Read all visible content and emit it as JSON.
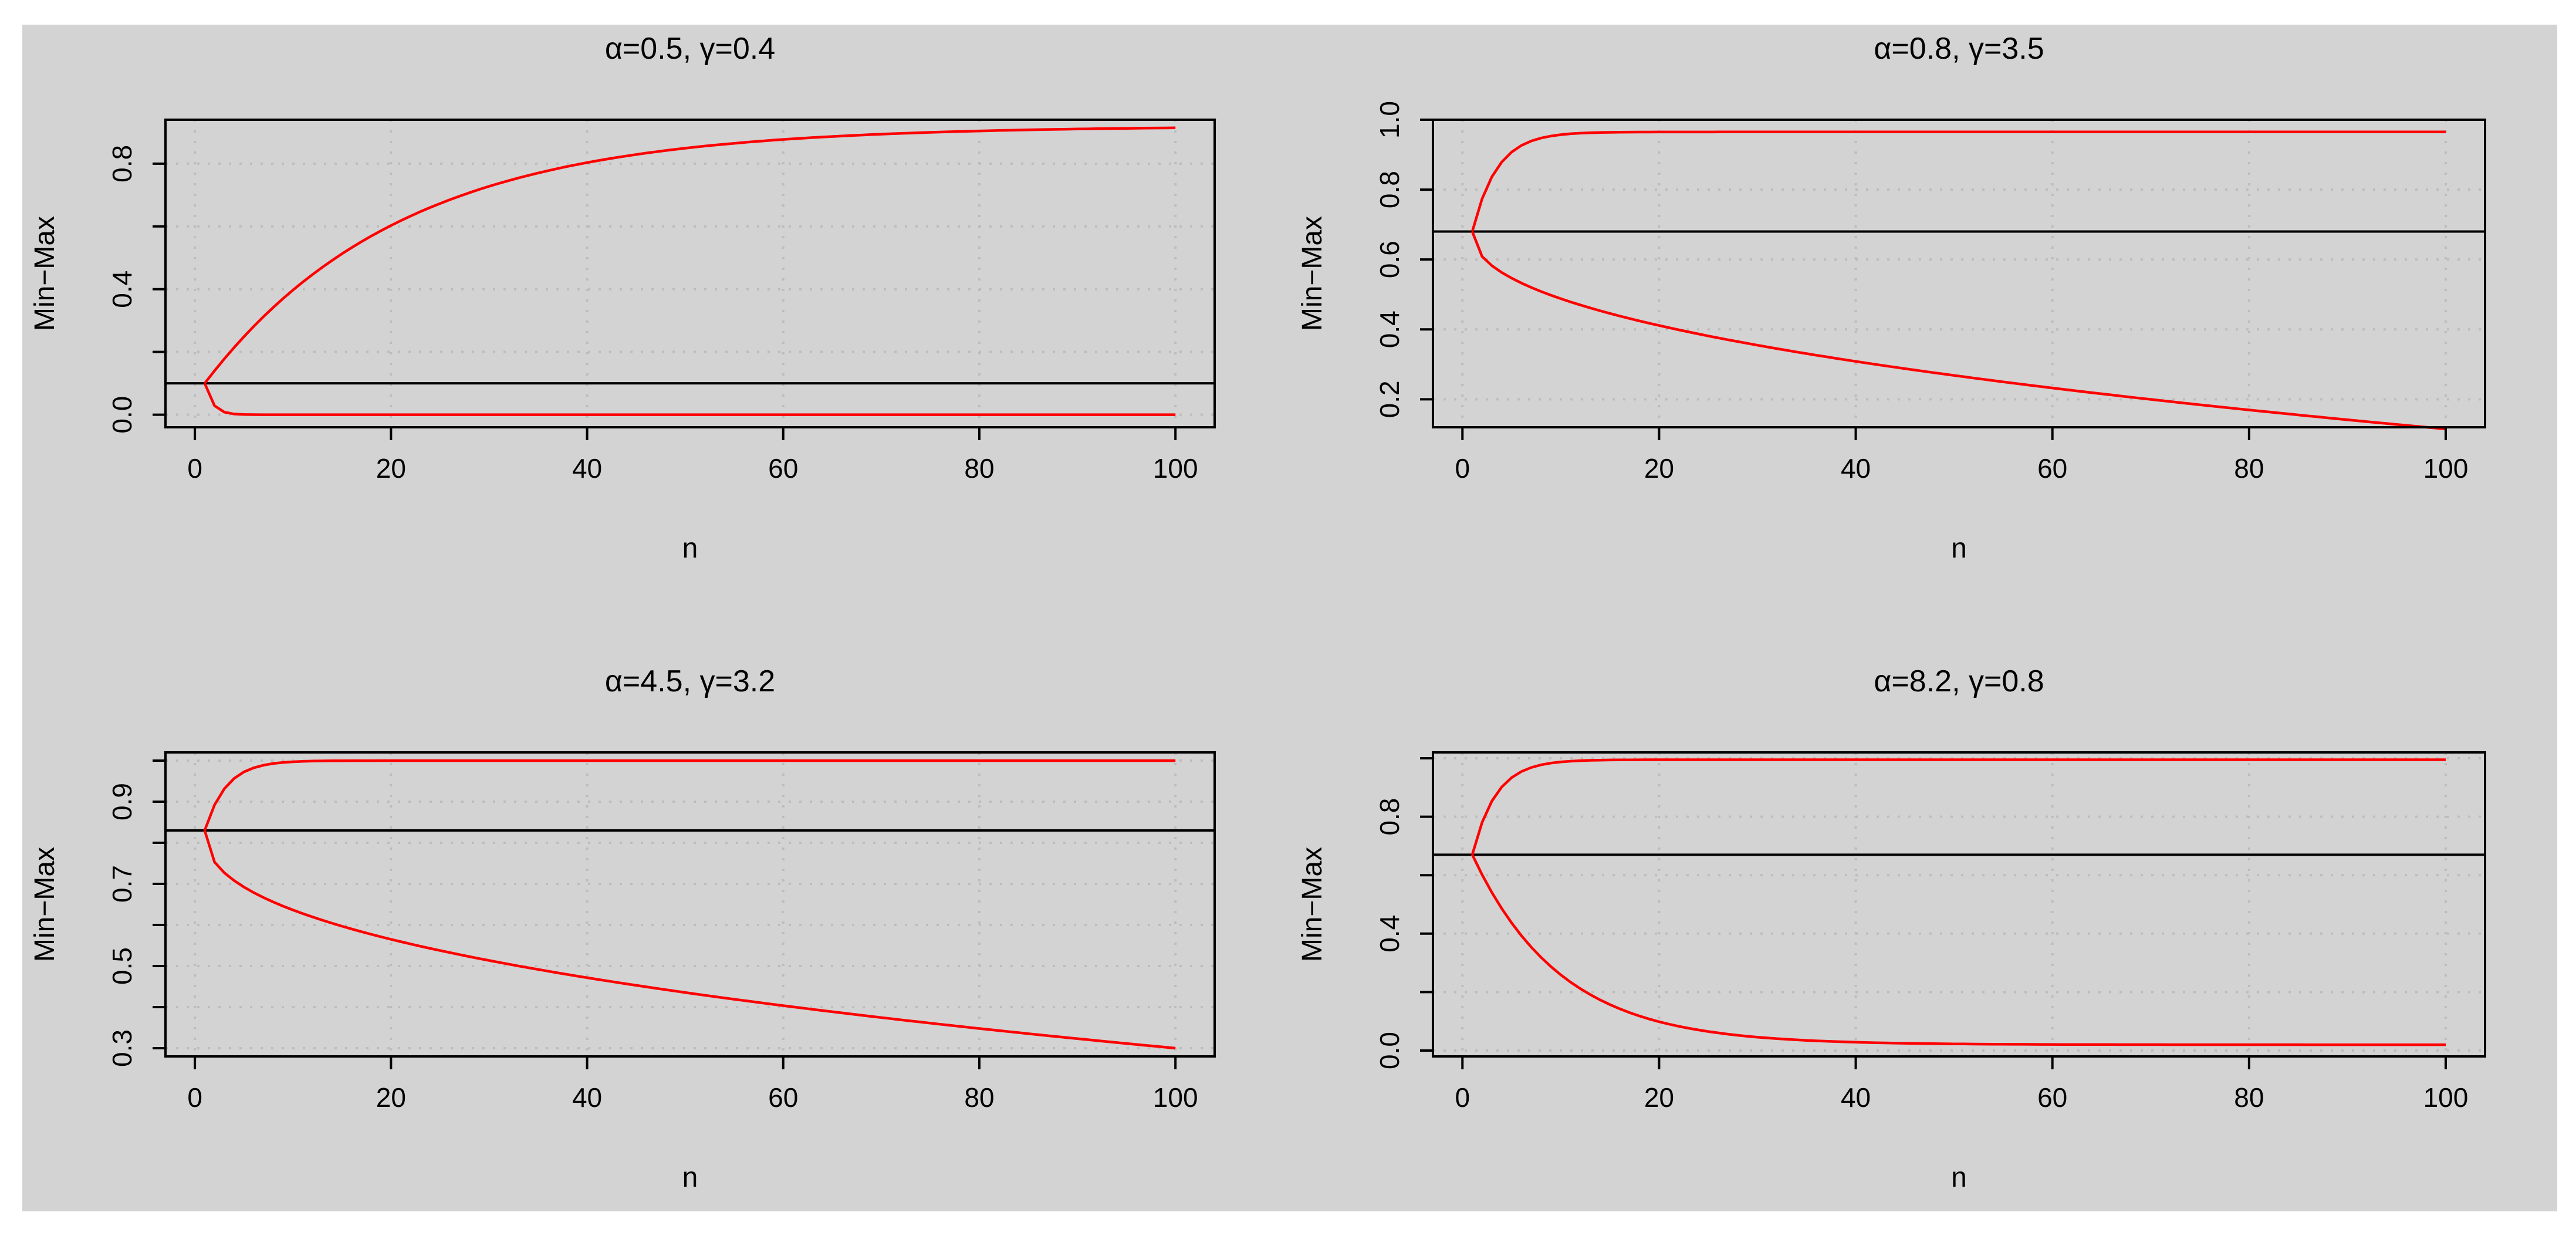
{
  "colors": {
    "page_bg": "#ffffff",
    "figure_bg": "#d3d3d3",
    "axis": "#000000",
    "grid": "#bdbdbd",
    "curve": "#ff0000"
  },
  "chart_data": [
    {
      "type": "line",
      "title": "α=0.5, γ=0.4",
      "xlabel": "n",
      "ylabel": "Min−Max",
      "xlim": [
        -3,
        104
      ],
      "ylim": [
        -0.04,
        0.94
      ],
      "xticks": [
        0,
        20,
        40,
        60,
        80,
        100
      ],
      "xtick_labels": [
        "0",
        "20",
        "40",
        "60",
        "80",
        "100"
      ],
      "yticks": [
        0.0,
        0.2,
        0.4,
        0.6,
        0.8
      ],
      "ytick_labels": [
        "0.0",
        "",
        "0.4",
        "",
        "0.8"
      ],
      "hline": 0.1,
      "upper_dash_y": null,
      "upper": {
        "start": 0.1,
        "limit": 0.92,
        "decay": 20
      },
      "lower": {
        "start": 0.1,
        "end": 0.0,
        "decay": 0.8
      }
    },
    {
      "type": "line",
      "title": "α=0.8, γ=3.5",
      "xlabel": "n",
      "ylabel": "Min−Max",
      "xlim": [
        -3,
        104
      ],
      "ylim": [
        0.12,
        1.0
      ],
      "xticks": [
        0,
        20,
        40,
        60,
        80,
        100
      ],
      "xtick_labels": [
        "0",
        "20",
        "40",
        "60",
        "80",
        "100"
      ],
      "yticks": [
        0.2,
        0.4,
        0.6,
        0.8,
        1.0
      ],
      "ytick_labels": [
        "0.2",
        "0.4",
        "0.6",
        "0.8",
        "1.0"
      ],
      "hline": 0.68,
      "upper_dash_y": 1.0,
      "upper": {
        "start": 0.68,
        "limit": 0.965,
        "decay": 2.5
      },
      "lower": {
        "start": 0.68,
        "end": 0.115,
        "power": 0.45
      }
    },
    {
      "type": "line",
      "title": "α=4.5, γ=3.2",
      "xlabel": "n",
      "ylabel": "Min−Max",
      "xlim": [
        -3,
        104
      ],
      "ylim": [
        0.28,
        1.02
      ],
      "xticks": [
        0,
        20,
        40,
        60,
        80,
        100
      ],
      "xtick_labels": [
        "0",
        "20",
        "40",
        "60",
        "80",
        "100"
      ],
      "yticks": [
        0.3,
        0.4,
        0.5,
        0.6,
        0.7,
        0.8,
        0.9,
        1.0
      ],
      "ytick_labels": [
        "0.3",
        "",
        "0.5",
        "",
        "0.7",
        "",
        "0.9",
        ""
      ],
      "hline": 0.83,
      "upper_dash_y": null,
      "upper": {
        "start": 0.83,
        "limit": 1.0,
        "decay": 2.2
      },
      "lower": {
        "start": 0.83,
        "end": 0.3,
        "power": 0.42
      }
    },
    {
      "type": "line",
      "title": "α=8.2, γ=0.8",
      "xlabel": "n",
      "ylabel": "Min−Max",
      "xlim": [
        -3,
        104
      ],
      "ylim": [
        -0.02,
        1.02
      ],
      "xticks": [
        0,
        20,
        40,
        60,
        80,
        100
      ],
      "xtick_labels": [
        "0",
        "20",
        "40",
        "60",
        "80",
        "100"
      ],
      "yticks": [
        0.0,
        0.2,
        0.4,
        0.6,
        0.8,
        1.0
      ],
      "ytick_labels": [
        "0.0",
        "",
        "0.4",
        "",
        "0.8",
        ""
      ],
      "hline": 0.67,
      "upper_dash_y": null,
      "upper": {
        "start": 0.67,
        "limit": 0.995,
        "decay": 2.4
      },
      "lower": {
        "start": 0.67,
        "end": 0.02,
        "decay": 9
      }
    }
  ]
}
